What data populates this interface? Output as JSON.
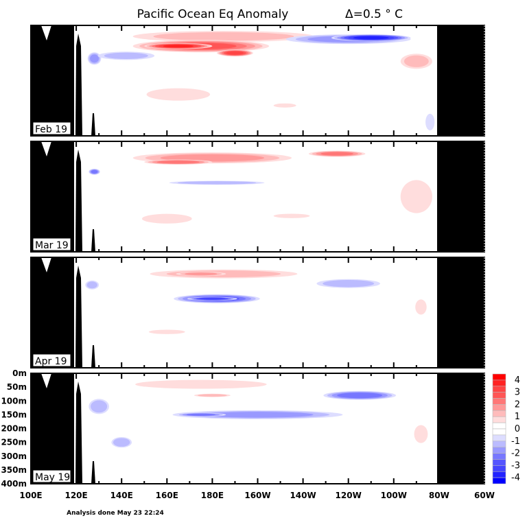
{
  "chart_data": {
    "type": "heatmap",
    "title": "Pacific Ocean Eq Anomaly",
    "contour_interval_label": "Δ=0.5 ° C",
    "footer": "Analysis done May 23 22:24",
    "x_range_lon_east": [
      100,
      300
    ],
    "x_tick_labels": [
      "100E",
      "120E",
      "140E",
      "160E",
      "180E",
      "160W",
      "140W",
      "120W",
      "100W",
      "80W",
      "60W"
    ],
    "y_range_depth_m": [
      0,
      400
    ],
    "y_tick_labels": [
      "0m",
      "50m",
      "100m",
      "150m",
      "200m",
      "250m",
      "300m",
      "350m",
      "400m"
    ],
    "colorbar": {
      "labels": [
        "4",
        "3",
        "2",
        "1",
        "0",
        "-1",
        "-2",
        "-3",
        "-4"
      ],
      "colors": [
        "#ff0000",
        "#ff2222",
        "#ff4444",
        "#ff5555",
        "#ff7777",
        "#ff9999",
        "#ffbbbb",
        "#ffdddd",
        "#ffffff",
        "#ffffff",
        "#ddddff",
        "#bbbbff",
        "#9999ff",
        "#7777ff",
        "#5555ff",
        "#4444ff",
        "#2222ff",
        "#0000ff"
      ]
    },
    "panels": [
      {
        "label": "Feb 19",
        "features": [
          {
            "lon": 185,
            "depth": 40,
            "dlon": 80,
            "ddepth": 40,
            "value": 1
          },
          {
            "lon": 175,
            "depth": 75,
            "dlon": 60,
            "ddepth": 45,
            "value": 2.5
          },
          {
            "lon": 165,
            "depth": 75,
            "dlon": 30,
            "ddepth": 22,
            "value": 3.5
          },
          {
            "lon": 190,
            "depth": 100,
            "dlon": 16,
            "ddepth": 25,
            "value": 3
          },
          {
            "lon": 240,
            "depth": 50,
            "dlon": 55,
            "ddepth": 35,
            "value": -1.5
          },
          {
            "lon": 250,
            "depth": 45,
            "dlon": 35,
            "ddepth": 25,
            "value": -3.5
          },
          {
            "lon": 128,
            "depth": 120,
            "dlon": 6,
            "ddepth": 45,
            "value": -1.5
          },
          {
            "lon": 142,
            "depth": 110,
            "dlon": 25,
            "ddepth": 30,
            "value": -1
          },
          {
            "lon": 270,
            "depth": 130,
            "dlon": 14,
            "ddepth": 55,
            "value": 1
          },
          {
            "lon": 165,
            "depth": 250,
            "dlon": 28,
            "ddepth": 45,
            "value": 0.8
          },
          {
            "lon": 212,
            "depth": 290,
            "dlon": 10,
            "ddepth": 15,
            "value": 0.7
          },
          {
            "lon": 276,
            "depth": 350,
            "dlon": 4,
            "ddepth": 60,
            "value": -0.7
          }
        ]
      },
      {
        "label": "Mar 19",
        "features": [
          {
            "lon": 180,
            "depth": 60,
            "dlon": 70,
            "ddepth": 40,
            "value": 1.5
          },
          {
            "lon": 165,
            "depth": 75,
            "dlon": 30,
            "ddepth": 18,
            "value": 2.2
          },
          {
            "lon": 235,
            "depth": 45,
            "dlon": 25,
            "ddepth": 22,
            "value": 2
          },
          {
            "lon": 182,
            "depth": 150,
            "dlon": 42,
            "ddepth": 14,
            "value": -1.3
          },
          {
            "lon": 128,
            "depth": 110,
            "dlon": 5,
            "ddepth": 22,
            "value": -2
          },
          {
            "lon": 270,
            "depth": 200,
            "dlon": 14,
            "ddepth": 120,
            "value": 0.8
          },
          {
            "lon": 160,
            "depth": 280,
            "dlon": 22,
            "ddepth": 35,
            "value": 0.7
          },
          {
            "lon": 215,
            "depth": 270,
            "dlon": 16,
            "ddepth": 16,
            "value": 0.7
          }
        ]
      },
      {
        "label": "Apr 19",
        "features": [
          {
            "lon": 185,
            "depth": 60,
            "dlon": 65,
            "ddepth": 32,
            "value": 1
          },
          {
            "lon": 175,
            "depth": 60,
            "dlon": 22,
            "ddepth": 16,
            "value": 1.5
          },
          {
            "lon": 240,
            "depth": 95,
            "dlon": 28,
            "ddepth": 32,
            "value": -1.2
          },
          {
            "lon": 182,
            "depth": 150,
            "dlon": 38,
            "ddepth": 32,
            "value": -2.5
          },
          {
            "lon": 180,
            "depth": 150,
            "dlon": 22,
            "ddepth": 14,
            "value": -3.2
          },
          {
            "lon": 127,
            "depth": 100,
            "dlon": 6,
            "ddepth": 32,
            "value": -1
          },
          {
            "lon": 160,
            "depth": 270,
            "dlon": 16,
            "ddepth": 16,
            "value": 0.6
          },
          {
            "lon": 272,
            "depth": 180,
            "dlon": 5,
            "ddepth": 55,
            "value": 0.6
          }
        ]
      },
      {
        "label": "May 19",
        "features": [
          {
            "lon": 175,
            "depth": 40,
            "dlon": 58,
            "ddepth": 32,
            "value": 0.8
          },
          {
            "lon": 180,
            "depth": 80,
            "dlon": 16,
            "ddepth": 12,
            "value": 1.2
          },
          {
            "lon": 200,
            "depth": 150,
            "dlon": 75,
            "ddepth": 32,
            "value": -1.5
          },
          {
            "lon": 245,
            "depth": 80,
            "dlon": 32,
            "ddepth": 32,
            "value": -2.2
          },
          {
            "lon": 175,
            "depth": 150,
            "dlon": 22,
            "ddepth": 14,
            "value": -2
          },
          {
            "lon": 130,
            "depth": 120,
            "dlon": 9,
            "ddepth": 55,
            "value": -1.2
          },
          {
            "lon": 140,
            "depth": 250,
            "dlon": 9,
            "ddepth": 38,
            "value": -1.3
          },
          {
            "lon": 272,
            "depth": 220,
            "dlon": 6,
            "ddepth": 65,
            "value": 0.7
          }
        ]
      }
    ]
  }
}
